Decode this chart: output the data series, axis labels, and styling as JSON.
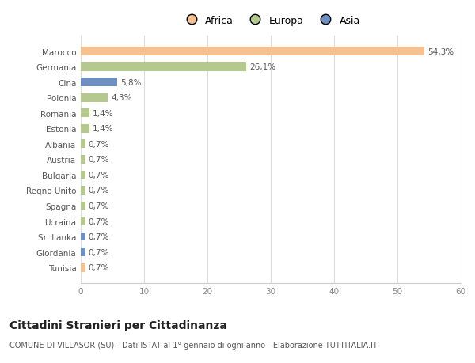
{
  "categories": [
    "Marocco",
    "Germania",
    "Cina",
    "Polonia",
    "Romania",
    "Estonia",
    "Albania",
    "Austria",
    "Bulgaria",
    "Regno Unito",
    "Spagna",
    "Ucraina",
    "Sri Lanka",
    "Giordania",
    "Tunisia"
  ],
  "values": [
    54.3,
    26.1,
    5.8,
    4.3,
    1.4,
    1.4,
    0.7,
    0.7,
    0.7,
    0.7,
    0.7,
    0.7,
    0.7,
    0.7,
    0.7
  ],
  "labels": [
    "54,3%",
    "26,1%",
    "5,8%",
    "4,3%",
    "1,4%",
    "1,4%",
    "0,7%",
    "0,7%",
    "0,7%",
    "0,7%",
    "0,7%",
    "0,7%",
    "0,7%",
    "0,7%",
    "0,7%"
  ],
  "colors": [
    "#f5c191",
    "#b5c98e",
    "#6f8fc0",
    "#b5c98e",
    "#b5c98e",
    "#b5c98e",
    "#b5c98e",
    "#b5c98e",
    "#b5c98e",
    "#b5c98e",
    "#b5c98e",
    "#b5c98e",
    "#6f8fc0",
    "#6f8fc0",
    "#f5c191"
  ],
  "legend_labels": [
    "Africa",
    "Europa",
    "Asia"
  ],
  "legend_colors": [
    "#f5c191",
    "#b5c98e",
    "#6f8fc0"
  ],
  "xlim": [
    0,
    60
  ],
  "xticks": [
    0,
    10,
    20,
    30,
    40,
    50,
    60
  ],
  "title": "Cittadini Stranieri per Cittadinanza",
  "subtitle": "COMUNE DI VILLASOR (SU) - Dati ISTAT al 1° gennaio di ogni anno - Elaborazione TUTTITALIA.IT",
  "background_color": "#ffffff",
  "bar_height": 0.55,
  "label_fontsize": 7.5,
  "tick_fontsize": 7.5,
  "xtick_fontsize": 7.5,
  "title_fontsize": 10,
  "subtitle_fontsize": 7
}
